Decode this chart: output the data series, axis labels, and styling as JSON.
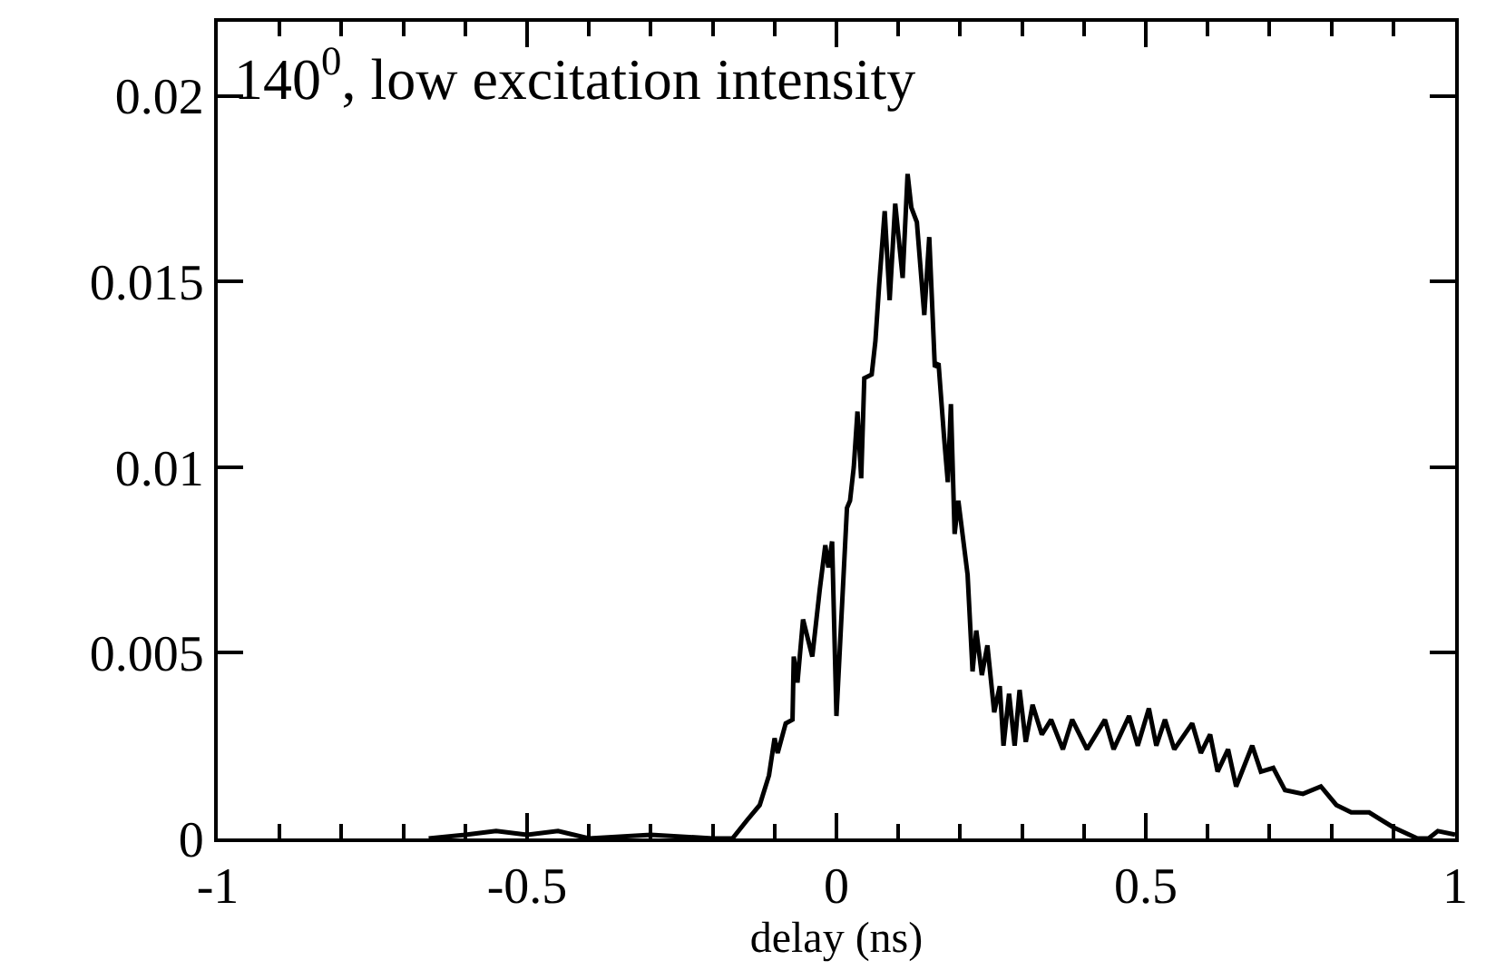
{
  "chart_data": {
    "type": "line",
    "title": "140$^{0}$, low excitation intensity",
    "xlabel": "delay (ns)",
    "series": [
      {
        "color": "#000000",
        "x": [
          -0.659,
          -0.6,
          -0.55,
          -0.5,
          -0.45,
          -0.4,
          -0.3,
          -0.2,
          -0.168,
          -0.144,
          -0.124,
          -0.109,
          -0.1,
          -0.095,
          -0.082,
          -0.071,
          -0.069,
          -0.063,
          -0.054,
          -0.039,
          -0.027,
          -0.018,
          -0.013,
          -0.007,
          0,
          0.017,
          0.022,
          0.028,
          0.034,
          0.04,
          0.045,
          0.057,
          0.063,
          0.069,
          0.078,
          0.086,
          0.095,
          0.107,
          0.115,
          0.121,
          0.13,
          0.142,
          0.15,
          0.159,
          0.165,
          0.174,
          0.18,
          0.185,
          0.191,
          0.197,
          0.212,
          0.22,
          0.226,
          0.235,
          0.244,
          0.255,
          0.264,
          0.27,
          0.279,
          0.288,
          0.296,
          0.306,
          0.317,
          0.332,
          0.347,
          0.366,
          0.381,
          0.405,
          0.434,
          0.448,
          0.473,
          0.487,
          0.505,
          0.517,
          0.531,
          0.546,
          0.575,
          0.589,
          0.604,
          0.616,
          0.633,
          0.646,
          0.672,
          0.686,
          0.706,
          0.725,
          0.754,
          0.783,
          0.808,
          0.832,
          0.861,
          0.9,
          0.939,
          0.957,
          0.972,
          1.0
        ],
        "values": [
          0,
          0.0001,
          0.0002,
          0.0001,
          0.0002,
          0,
          0.0001,
          0,
          0,
          0.0005,
          0.0009,
          0.0017,
          0.0027,
          0.0023,
          0.0031,
          0.0032,
          0.0049,
          0.0042,
          0.0059,
          0.0049,
          0.0067,
          0.0079,
          0.0073,
          0.008,
          0.0033,
          0.0089,
          0.0091,
          0.01,
          0.0115,
          0.0097,
          0.0124,
          0.0125,
          0.0134,
          0.0149,
          0.0169,
          0.0145,
          0.0171,
          0.0151,
          0.0179,
          0.017,
          0.0166,
          0.0141,
          0.0162,
          0.0127,
          0.0128,
          0.0108,
          0.0096,
          0.0117,
          0.0082,
          0.0091,
          0.0071,
          0.0045,
          0.0056,
          0.0044,
          0.0052,
          0.0034,
          0.0041,
          0.0025,
          0.0039,
          0.0025,
          0.004,
          0.0026,
          0.0036,
          0.0028,
          0.0032,
          0.0024,
          0.0032,
          0.0024,
          0.0032,
          0.0024,
          0.0033,
          0.0025,
          0.0035,
          0.0025,
          0.0032,
          0.0024,
          0.0031,
          0.0023,
          0.0028,
          0.0018,
          0.0024,
          0.0014,
          0.0025,
          0.0018,
          0.0019,
          0.0013,
          0.0012,
          0.0014,
          0.0009,
          0.0007,
          0.0007,
          0.0003,
          0,
          0,
          0.0002,
          0.0001
        ]
      }
    ],
    "xlim": [
      -1,
      1
    ],
    "xticks": [
      -1,
      {
        "value": -0.9,
        "label": null
      },
      {
        "value": -0.8,
        "label": null
      },
      {
        "value": -0.7,
        "label": null
      },
      {
        "value": -0.6,
        "label": null
      },
      -0.5,
      {
        "value": -0.4,
        "label": null
      },
      {
        "value": -0.3,
        "label": null
      },
      {
        "value": -0.2,
        "label": null
      },
      {
        "value": -0.1,
        "label": null
      },
      0,
      {
        "value": 0.1,
        "label": null
      },
      {
        "value": 0.2,
        "label": null
      },
      {
        "value": 0.3,
        "label": null
      },
      {
        "value": 0.4,
        "label": null
      },
      0.5,
      {
        "value": 0.6,
        "label": null
      },
      {
        "value": 0.7,
        "label": null
      },
      {
        "value": 0.8,
        "label": null
      },
      {
        "value": 0.9,
        "label": null
      },
      1
    ],
    "ylim": [
      0,
      0.022
    ],
    "yticks": [
      0,
      0.005,
      0.01,
      0.015,
      0.02
    ],
    "grid": false,
    "marker": "none",
    "line_style": "solid"
  }
}
